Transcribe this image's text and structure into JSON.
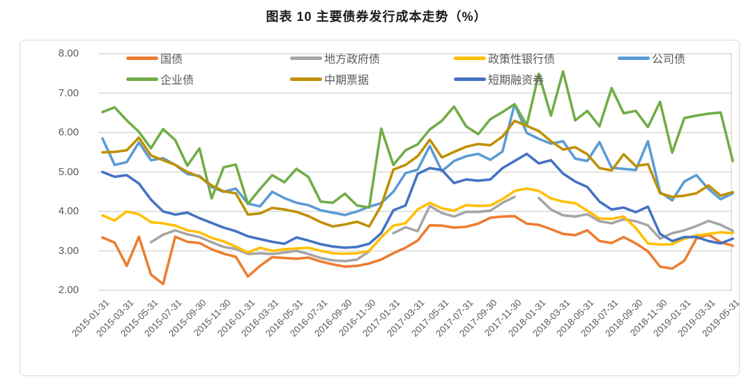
{
  "title": "图表 10 主要债券发行成本走势（%）",
  "colors": {
    "grid": "#d9d9d9",
    "axis_text": "#595959",
    "panel_border": "#d9d9d9",
    "title_text": "#1a1a1a"
  },
  "chart_data": {
    "type": "line",
    "title": "图表 10 主要债券发行成本走势（%）",
    "unit": "%",
    "ylim": [
      2.0,
      8.0
    ],
    "y_ticks": [
      "8.00",
      "7.00",
      "6.00",
      "5.00",
      "4.00",
      "3.00",
      "2.00"
    ],
    "grid": "horizontal",
    "legend_position": "top-inside-two-rows",
    "x_is_monthly_from": "2015-01",
    "x_tick_every": 2,
    "x_tick_labels": [
      "2015-01-31",
      "2015-03-31",
      "2015-05-31",
      "2015-07-31",
      "2015-09-30",
      "2015-11-30",
      "2016-01-31",
      "2016-03-31",
      "2016-05-31",
      "2016-07-31",
      "2016-09-30",
      "2016-11-30",
      "2017-01-31",
      "2017-03-31",
      "2017-05-31",
      "2017-07-31",
      "2017-09-30",
      "2017-11-30",
      "2018-01-31",
      "2018-03-31",
      "2018-05-31",
      "2018-07-31",
      "2018-09-30",
      "2018-11-30",
      "2019-01-31",
      "2019-03-31",
      "2019-05-31"
    ],
    "series": [
      {
        "name": "国债",
        "color": "#ED7D31",
        "values": [
          3.34,
          3.21,
          2.62,
          3.36,
          2.4,
          2.16,
          3.36,
          3.23,
          3.2,
          3.04,
          2.93,
          2.85,
          2.35,
          2.62,
          2.84,
          2.82,
          2.8,
          2.83,
          2.73,
          2.66,
          2.6,
          2.62,
          2.68,
          2.78,
          2.94,
          3.08,
          3.26,
          3.65,
          3.64,
          3.59,
          3.61,
          3.69,
          3.84,
          3.87,
          3.88,
          3.69,
          3.66,
          3.55,
          3.43,
          3.4,
          3.52,
          3.25,
          3.2,
          3.35,
          3.19,
          2.99,
          2.6,
          2.55,
          2.75,
          3.31,
          3.41,
          3.22,
          3.13
        ]
      },
      {
        "name": "地方政府债",
        "color": "#A5A5A5",
        "values": [
          null,
          null,
          null,
          null,
          3.22,
          3.41,
          3.52,
          3.42,
          3.35,
          3.22,
          3.1,
          3.05,
          2.92,
          2.94,
          2.92,
          2.96,
          3.0,
          2.92,
          2.82,
          2.76,
          2.74,
          2.78,
          2.99,
          null,
          3.45,
          3.6,
          3.5,
          4.14,
          3.96,
          3.87,
          3.99,
          3.99,
          4.02,
          4.22,
          4.37,
          null,
          4.34,
          4.05,
          3.9,
          3.87,
          3.93,
          3.75,
          3.7,
          3.8,
          3.75,
          3.65,
          3.31,
          3.45,
          3.52,
          3.63,
          3.76,
          3.66,
          3.51
        ]
      },
      {
        "name": "政策性银行债",
        "color": "#FFC000",
        "values": [
          3.9,
          3.77,
          4.0,
          3.93,
          3.73,
          3.7,
          3.64,
          3.52,
          3.47,
          3.33,
          3.24,
          3.11,
          2.96,
          3.08,
          3.0,
          3.04,
          3.06,
          3.08,
          3.0,
          2.94,
          2.93,
          2.94,
          3.0,
          3.34,
          3.64,
          3.7,
          4.05,
          4.22,
          4.08,
          4.02,
          4.16,
          4.14,
          4.15,
          4.31,
          4.52,
          4.58,
          4.52,
          4.33,
          4.25,
          4.21,
          4.02,
          3.82,
          3.81,
          3.87,
          3.58,
          3.19,
          3.16,
          3.17,
          3.31,
          3.39,
          3.43,
          3.47,
          3.45
        ]
      },
      {
        "name": "公司债",
        "color": "#5B9BD5",
        "values": [
          5.85,
          5.18,
          5.25,
          5.75,
          5.3,
          5.35,
          5.18,
          4.95,
          4.9,
          4.62,
          4.5,
          4.58,
          4.2,
          4.13,
          4.5,
          4.34,
          4.22,
          4.16,
          4.03,
          3.97,
          3.91,
          4.0,
          4.12,
          4.21,
          4.5,
          4.97,
          5.06,
          5.66,
          5.02,
          5.28,
          5.4,
          5.46,
          5.31,
          5.52,
          6.72,
          5.99,
          5.84,
          5.72,
          5.78,
          5.34,
          5.28,
          5.76,
          5.11,
          5.08,
          5.05,
          5.78,
          4.49,
          4.28,
          4.76,
          4.92,
          4.57,
          4.31,
          4.46
        ]
      },
      {
        "name": "企业债",
        "color": "#70AD47",
        "values": [
          6.52,
          6.64,
          6.31,
          6.02,
          5.6,
          6.09,
          5.81,
          5.16,
          5.6,
          4.33,
          5.12,
          5.19,
          4.19,
          4.57,
          4.92,
          4.74,
          5.08,
          4.87,
          4.25,
          4.22,
          4.45,
          4.15,
          4.1,
          6.1,
          5.18,
          5.55,
          5.7,
          6.08,
          6.3,
          6.66,
          6.16,
          5.96,
          6.34,
          6.52,
          6.72,
          6.19,
          7.49,
          6.43,
          7.55,
          6.31,
          6.55,
          6.16,
          7.13,
          6.49,
          6.55,
          6.14,
          6.78,
          5.49,
          6.37,
          6.43,
          6.48,
          6.51,
          5.28
        ]
      },
      {
        "name": "中期票据",
        "color": "#BF9000",
        "values": [
          5.5,
          5.51,
          5.55,
          5.87,
          5.42,
          5.3,
          5.18,
          5.0,
          4.88,
          4.66,
          4.51,
          4.46,
          3.92,
          3.95,
          4.09,
          4.05,
          3.99,
          3.88,
          3.73,
          3.62,
          3.67,
          3.74,
          3.62,
          4.15,
          5.06,
          5.18,
          5.4,
          5.82,
          5.37,
          5.51,
          5.64,
          5.71,
          5.68,
          5.9,
          6.3,
          6.17,
          6.04,
          5.78,
          5.57,
          5.63,
          5.45,
          5.1,
          5.04,
          5.45,
          5.15,
          5.2,
          4.46,
          4.37,
          4.4,
          4.46,
          4.66,
          4.4,
          4.49
        ]
      },
      {
        "name": "短期融资券",
        "color": "#4472C4",
        "values": [
          5.0,
          4.88,
          4.92,
          4.71,
          4.3,
          4.0,
          3.92,
          3.97,
          3.83,
          3.71,
          3.59,
          3.5,
          3.37,
          3.3,
          3.23,
          3.18,
          3.34,
          3.26,
          3.17,
          3.11,
          3.08,
          3.1,
          3.18,
          3.45,
          4.03,
          4.15,
          4.95,
          5.1,
          5.05,
          4.72,
          4.81,
          4.78,
          4.81,
          5.1,
          5.28,
          5.46,
          5.22,
          5.3,
          4.96,
          4.76,
          4.62,
          4.25,
          4.05,
          4.1,
          3.98,
          4.12,
          3.43,
          3.25,
          3.35,
          3.35,
          3.25,
          3.19,
          3.31
        ]
      }
    ]
  }
}
